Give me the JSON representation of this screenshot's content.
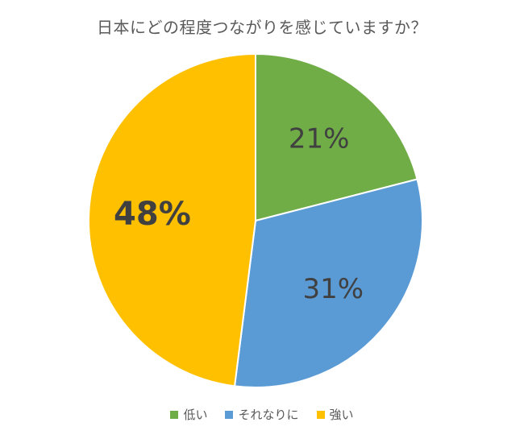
{
  "chart_data": {
    "type": "pie",
    "title": "日本にどの程度つながりを感じていますか？",
    "categories": [
      "低い",
      "それなりに",
      "強い"
    ],
    "values": [
      21,
      31,
      48
    ],
    "data_labels": [
      "21%",
      "31%",
      "48%"
    ],
    "colors": [
      "#70AD47",
      "#5B9BD5",
      "#FFC000"
    ],
    "start_angle": "12 o'clock, clockwise",
    "highlighted_label": "48%",
    "legend_position": "bottom"
  }
}
